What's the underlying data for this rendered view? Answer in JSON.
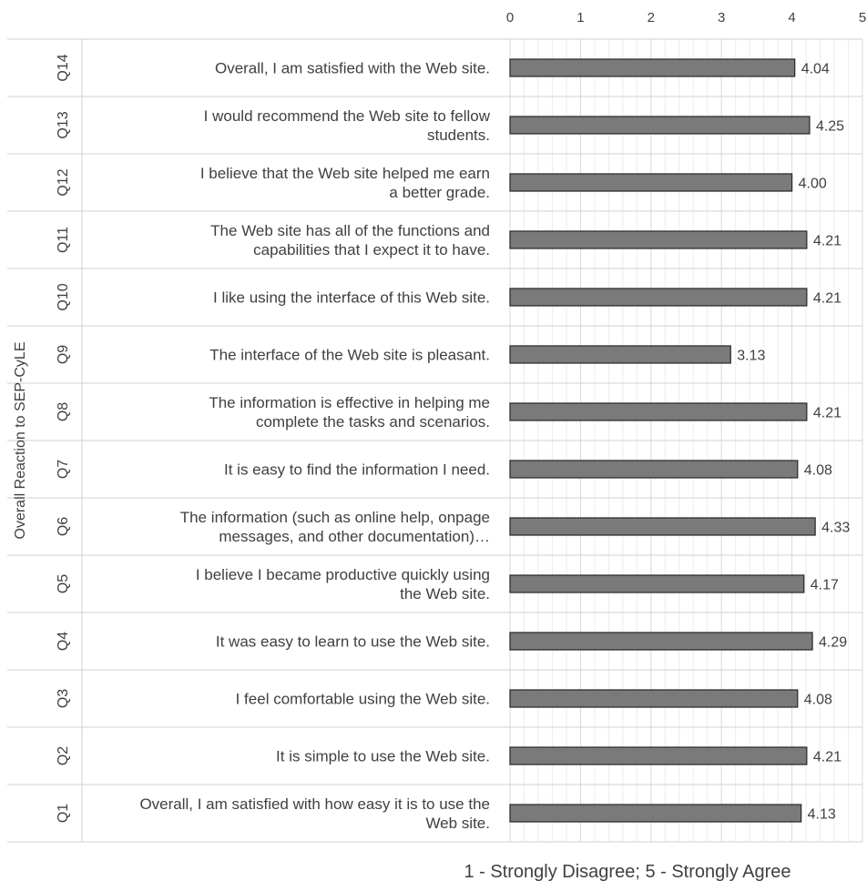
{
  "chart_data": {
    "type": "bar",
    "orientation": "horizontal",
    "title": "",
    "xlabel": "1 - Strongly Disagree; 5 - Strongly Agree",
    "ylabel": "Overall Reaction to SEP-CyLE",
    "xlim": [
      0,
      5
    ],
    "xticks": [
      "0",
      "1",
      "2",
      "3",
      "4",
      "5"
    ],
    "x_axis_position": "top",
    "grid": true,
    "colors": {
      "bar": "#7a7a7a",
      "bar_edge": "#262626",
      "text": "#404040",
      "grid": "#d9d9d9"
    },
    "rows": [
      {
        "id": "Q14",
        "lines": [
          "Overall, I am satisfied with the Web site."
        ],
        "value": 4.04,
        "label": "4.04"
      },
      {
        "id": "Q13",
        "lines": [
          "I would recommend the Web site to fellow",
          "students."
        ],
        "value": 4.25,
        "label": "4.25"
      },
      {
        "id": "Q12",
        "lines": [
          "I believe that the Web site helped me earn",
          "a better grade."
        ],
        "value": 4.0,
        "label": "4.00"
      },
      {
        "id": "Q11",
        "lines": [
          "The Web site has all of the functions and",
          "capabilities that I expect it to have."
        ],
        "value": 4.21,
        "label": "4.21"
      },
      {
        "id": "Q10",
        "lines": [
          "I like using the interface of this Web site."
        ],
        "value": 4.21,
        "label": "4.21"
      },
      {
        "id": "Q9",
        "lines": [
          "The interface of the Web site is pleasant."
        ],
        "value": 3.13,
        "label": "3.13"
      },
      {
        "id": "Q8",
        "lines": [
          "The information is effective in helping me",
          "complete the tasks and scenarios."
        ],
        "value": 4.21,
        "label": "4.21"
      },
      {
        "id": "Q7",
        "lines": [
          "It is easy to find the information I need."
        ],
        "value": 4.08,
        "label": "4.08"
      },
      {
        "id": "Q6",
        "lines": [
          "The information (such as online help, onpage",
          "messages, and other documentation)…"
        ],
        "value": 4.33,
        "label": "4.33"
      },
      {
        "id": "Q5",
        "lines": [
          "I believe I became productive quickly using",
          "the Web site."
        ],
        "value": 4.17,
        "label": "4.17"
      },
      {
        "id": "Q4",
        "lines": [
          "It was easy to learn to use the Web site."
        ],
        "value": 4.29,
        "label": "4.29"
      },
      {
        "id": "Q3",
        "lines": [
          "I feel comfortable using the Web site."
        ],
        "value": 4.08,
        "label": "4.08"
      },
      {
        "id": "Q2",
        "lines": [
          "It is simple to use the Web site."
        ],
        "value": 4.21,
        "label": "4.21"
      },
      {
        "id": "Q1",
        "lines": [
          "Overall, I am satisfied with how easy it is to use the",
          "Web site."
        ],
        "value": 4.13,
        "label": "4.13"
      }
    ]
  }
}
